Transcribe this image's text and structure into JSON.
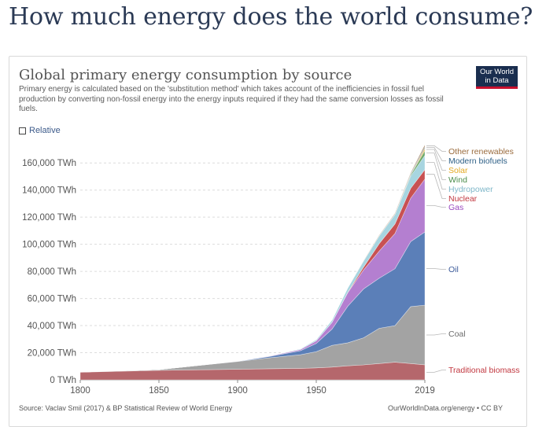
{
  "page": {
    "title": "How much energy does the world consume?"
  },
  "card": {
    "title": "Global primary energy consumption by source",
    "subtitle": "Primary energy is calculated based on the 'substitution method' which takes account of the inefficiencies in fossil fuel production by converting non-fossil energy into the energy inputs required if they had the same conversion losses as fossil fuels.",
    "relative_label": "Relative",
    "logo_line1": "Our World",
    "logo_line2": "in Data",
    "source": "Source: Vaclav Smil (2017) & BP Statistical Review of World Energy",
    "credit": "OurWorldInData.org/energy • CC BY"
  },
  "colors": {
    "Traditional biomass": "#b5676c",
    "Coal": "#a3a3a3",
    "Oil": "#5b7fb8",
    "Gas": "#b47fd0",
    "Nuclear": "#c85152",
    "Hydropower": "#a7d5e0",
    "Wind": "#6ca86c",
    "Solar": "#f2c05a",
    "Modern biofuels": "#46749d",
    "Other renewables": "#a6805a",
    "Traditional biomass_label": "#c1373f",
    "Coal_label": "#6b6b6b",
    "Oil_label": "#3b5a9a",
    "Gas_label": "#9a4ac0",
    "Nuclear_label": "#c1373f",
    "Hydropower_label": "#7fb7c9",
    "Wind_label": "#4a8c4a",
    "Solar_label": "#e3a822",
    "Modern biofuels_label": "#2d5f86",
    "Other renewables_label": "#9a6b3d"
  },
  "chart_data": {
    "type": "area",
    "stacked": true,
    "title": "Global primary energy consumption by source",
    "x": [
      1800,
      1850,
      1900,
      1920,
      1940,
      1950,
      1960,
      1970,
      1980,
      1990,
      2000,
      2010,
      2019
    ],
    "series": [
      {
        "name": "Traditional biomass",
        "values": [
          5600,
          7000,
          7800,
          8200,
          8500,
          8800,
          9400,
          10300,
          11000,
          12000,
          13000,
          12000,
          11100
        ]
      },
      {
        "name": "Coal",
        "values": [
          100,
          600,
          5700,
          8000,
          10000,
          12000,
          16000,
          17000,
          20000,
          26000,
          27000,
          42000,
          44000
        ]
      },
      {
        "name": "Oil",
        "values": [
          0,
          0,
          200,
          1000,
          3000,
          6000,
          12000,
          27000,
          36000,
          37000,
          42000,
          48000,
          54000
        ]
      },
      {
        "name": "Gas",
        "values": [
          0,
          0,
          70,
          300,
          900,
          2000,
          5000,
          10000,
          14000,
          20000,
          26000,
          32000,
          39000
        ]
      },
      {
        "name": "Nuclear",
        "values": [
          0,
          0,
          0,
          0,
          0,
          0,
          10,
          200,
          2000,
          5500,
          7000,
          7300,
          7000
        ]
      },
      {
        "name": "Hydropower",
        "values": [
          0,
          0,
          0,
          150,
          500,
          900,
          1800,
          3300,
          4600,
          5700,
          7000,
          9000,
          10500
        ]
      },
      {
        "name": "Wind",
        "values": [
          0,
          0,
          0,
          0,
          0,
          0,
          0,
          0,
          0,
          10,
          80,
          900,
          3500
        ]
      },
      {
        "name": "Solar",
        "values": [
          0,
          0,
          0,
          0,
          0,
          0,
          0,
          0,
          0,
          0,
          3,
          100,
          1800
        ]
      },
      {
        "name": "Modern biofuels",
        "values": [
          0,
          0,
          0,
          0,
          0,
          0,
          0,
          0,
          30,
          120,
          200,
          700,
          1100
        ]
      },
      {
        "name": "Other renewables",
        "values": [
          0,
          0,
          0,
          0,
          0,
          0,
          20,
          50,
          150,
          400,
          600,
          800,
          1400
        ]
      }
    ],
    "xlabel": "",
    "ylabel": "",
    "x_ticks": [
      "1800",
      "1850",
      "1900",
      "1950",
      "2019"
    ],
    "y_ticks": [
      "0 TWh",
      "20,000 TWh",
      "40,000 TWh",
      "60,000 TWh",
      "80,000 TWh",
      "100,000 TWh",
      "120,000 TWh",
      "140,000 TWh",
      "160,000 TWh"
    ],
    "y_tick_values": [
      0,
      20000,
      40000,
      60000,
      80000,
      100000,
      120000,
      140000,
      160000
    ],
    "xlim": [
      1800,
      2019
    ],
    "ylim": [
      0,
      170000
    ],
    "grid": true,
    "legend_position": "right"
  }
}
